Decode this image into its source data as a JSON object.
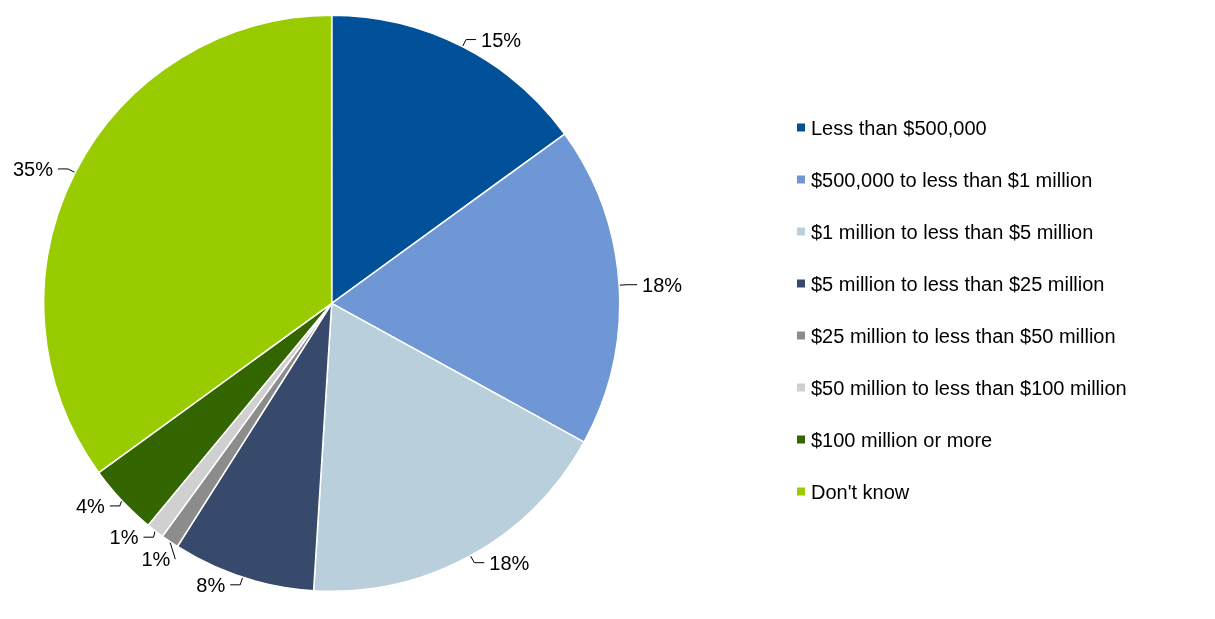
{
  "chart_data": {
    "type": "pie",
    "categories": [
      "Less than $500,000",
      "$500,000 to less than $1 million",
      "$1 million to less than $5 million",
      "$5 million to less than $25 million",
      "$25 million to less than $50 million",
      "$50 million to less than $100 million",
      "$100 million or more",
      "Don't know"
    ],
    "values": [
      15,
      18,
      18,
      8,
      1,
      1,
      4,
      35
    ],
    "value_labels": [
      "15%",
      "18%",
      "18%",
      "8%",
      "1%",
      "1%",
      "4%",
      "35%"
    ],
    "colors": [
      "#00509a",
      "#6f97d6",
      "#b9cfdc",
      "#384a6b",
      "#8c8c8c",
      "#d0d0d0",
      "#336600",
      "#99cc00"
    ],
    "legend": "right"
  }
}
